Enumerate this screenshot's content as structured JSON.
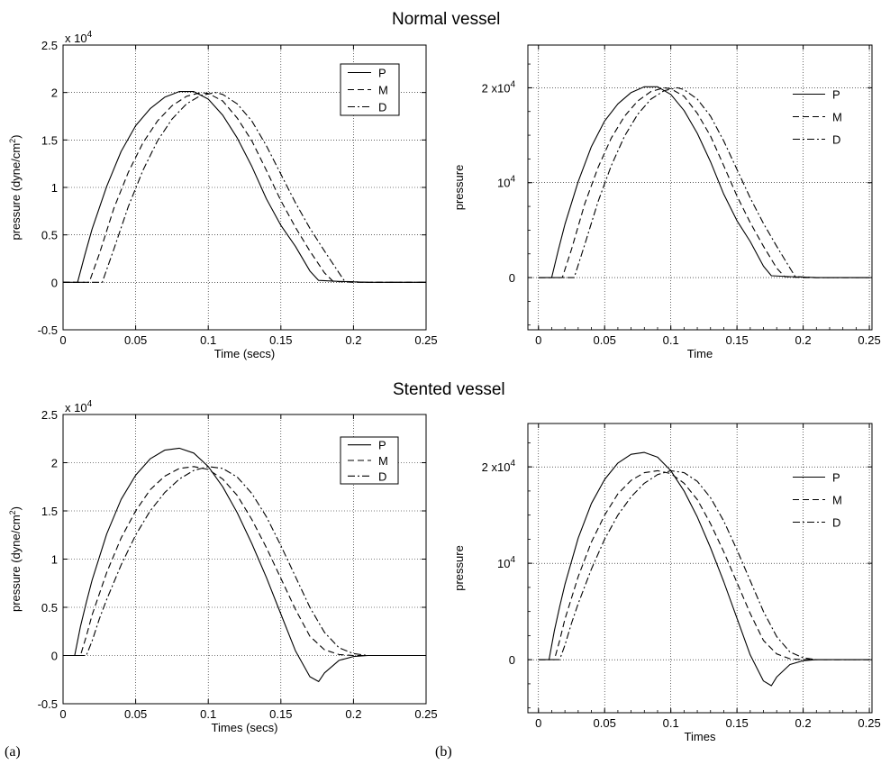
{
  "sections": {
    "top": "Normal vessel",
    "bottom": "Stented vessel"
  },
  "panel_tags": {
    "left": "(a)",
    "right": "(b)"
  },
  "chart_data": [
    {
      "id": "normal-a",
      "type": "line",
      "title": "",
      "xlabel": "Time  (secs)",
      "ylabel": "pressure  (dyne/cm",
      "ylabel_sup": "2",
      "ylabel_tail": ")",
      "exponent_label": "x 10",
      "exponent_sup": "4",
      "xlim": [
        0,
        0.25
      ],
      "ylim": [
        -0.5,
        2.5
      ],
      "grid": true,
      "legend": "top-right",
      "legend_boxed": true,
      "x_ticks": [
        0,
        0.05,
        0.1,
        0.15,
        0.2,
        0.25
      ],
      "x_tick_labels": [
        "0",
        "0.05",
        "0.1",
        "0.15",
        "0.2",
        "0.25"
      ],
      "y_ticks": [
        -0.5,
        0,
        0.5,
        1,
        1.5,
        2,
        2.5
      ],
      "y_tick_labels": [
        "-0.5",
        "0",
        "0.5",
        "1",
        "1.5",
        "2",
        "2.5"
      ],
      "series": [
        {
          "name": "P",
          "style": "solid",
          "x": [
            0,
            0.01,
            0.015,
            0.02,
            0.03,
            0.04,
            0.05,
            0.06,
            0.07,
            0.08,
            0.09,
            0.1,
            0.11,
            0.12,
            0.13,
            0.14,
            0.15,
            0.16,
            0.17,
            0.176,
            0.19,
            0.21,
            0.25
          ],
          "y": [
            0,
            0,
            0.29,
            0.56,
            1.01,
            1.38,
            1.65,
            1.83,
            1.95,
            2.01,
            2.01,
            1.93,
            1.76,
            1.52,
            1.22,
            0.88,
            0.6,
            0.38,
            0.12,
            0.02,
            0.01,
            0,
            0
          ]
        },
        {
          "name": "M",
          "style": "dashed",
          "x": [
            0,
            0.018,
            0.025,
            0.035,
            0.045,
            0.055,
            0.065,
            0.075,
            0.085,
            0.095,
            0.1,
            0.11,
            0.12,
            0.13,
            0.14,
            0.15,
            0.16,
            0.17,
            0.18,
            0.186,
            0.2,
            0.25
          ],
          "y": [
            0,
            0,
            0.3,
            0.78,
            1.16,
            1.47,
            1.7,
            1.86,
            1.96,
            2.0,
            1.99,
            1.91,
            1.73,
            1.49,
            1.18,
            0.86,
            0.58,
            0.33,
            0.1,
            0.01,
            0,
            0
          ]
        },
        {
          "name": "D",
          "style": "dashdot",
          "x": [
            0,
            0.027,
            0.035,
            0.045,
            0.055,
            0.065,
            0.075,
            0.085,
            0.095,
            0.105,
            0.11,
            0.12,
            0.13,
            0.14,
            0.15,
            0.16,
            0.17,
            0.18,
            0.19,
            0.194,
            0.21,
            0.25
          ],
          "y": [
            0,
            0,
            0.35,
            0.8,
            1.18,
            1.49,
            1.72,
            1.88,
            1.97,
            2.0,
            1.98,
            1.88,
            1.7,
            1.44,
            1.14,
            0.84,
            0.57,
            0.33,
            0.1,
            0.01,
            0,
            0
          ]
        }
      ]
    },
    {
      "id": "normal-b",
      "type": "line",
      "title": "",
      "xlabel": "Time",
      "ylabel": "pressure",
      "xlim": [
        -0.008,
        0.252
      ],
      "ylim": [
        -0.55,
        2.45
      ],
      "grid": true,
      "legend": "top-right",
      "legend_boxed": false,
      "x_ticks": [
        0,
        0.05,
        0.1,
        0.15,
        0.2,
        0.25
      ],
      "x_tick_labels": [
        "0",
        "0.05",
        "0.1",
        "0.15",
        "0.2",
        "0.25"
      ],
      "y_ticks": [
        0,
        1,
        2
      ],
      "y_tick_labels": [
        {
          "base": "0"
        },
        {
          "base": "10",
          "sup": "4"
        },
        {
          "base": "2 x10",
          "sup": "4"
        }
      ],
      "series": [
        {
          "name": "P",
          "style": "solid",
          "x": [
            0,
            0.01,
            0.015,
            0.02,
            0.03,
            0.04,
            0.05,
            0.06,
            0.07,
            0.08,
            0.09,
            0.1,
            0.11,
            0.12,
            0.13,
            0.14,
            0.15,
            0.16,
            0.17,
            0.176,
            0.19,
            0.21,
            0.25
          ],
          "y": [
            0,
            0,
            0.29,
            0.56,
            1.01,
            1.38,
            1.65,
            1.83,
            1.95,
            2.01,
            2.01,
            1.93,
            1.76,
            1.52,
            1.22,
            0.88,
            0.6,
            0.38,
            0.12,
            0.02,
            0.01,
            0,
            0
          ]
        },
        {
          "name": "M",
          "style": "dashed",
          "x": [
            0,
            0.018,
            0.025,
            0.035,
            0.045,
            0.055,
            0.065,
            0.075,
            0.085,
            0.095,
            0.1,
            0.11,
            0.12,
            0.13,
            0.14,
            0.15,
            0.16,
            0.17,
            0.18,
            0.186,
            0.2,
            0.25
          ],
          "y": [
            0,
            0,
            0.3,
            0.78,
            1.16,
            1.47,
            1.7,
            1.86,
            1.96,
            2.0,
            1.99,
            1.91,
            1.73,
            1.49,
            1.18,
            0.86,
            0.58,
            0.33,
            0.1,
            0.01,
            0,
            0
          ]
        },
        {
          "name": "D",
          "style": "dashdot",
          "x": [
            0,
            0.027,
            0.035,
            0.045,
            0.055,
            0.065,
            0.075,
            0.085,
            0.095,
            0.105,
            0.11,
            0.12,
            0.13,
            0.14,
            0.15,
            0.16,
            0.17,
            0.18,
            0.19,
            0.194,
            0.21,
            0.25
          ],
          "y": [
            0,
            0,
            0.35,
            0.8,
            1.18,
            1.49,
            1.72,
            1.88,
            1.97,
            2.0,
            1.98,
            1.88,
            1.7,
            1.44,
            1.14,
            0.84,
            0.57,
            0.33,
            0.1,
            0.01,
            0,
            0
          ]
        }
      ]
    },
    {
      "id": "stented-a",
      "type": "line",
      "title": "",
      "xlabel": "Times  (secs)",
      "ylabel": "pressure  (dyne/cm",
      "ylabel_sup": "2",
      "ylabel_tail": ")",
      "exponent_label": "x 10",
      "exponent_sup": "4",
      "xlim": [
        0,
        0.25
      ],
      "ylim": [
        -0.5,
        2.5
      ],
      "grid": true,
      "legend": "top-right",
      "legend_boxed": true,
      "x_ticks": [
        0,
        0.05,
        0.1,
        0.15,
        0.2,
        0.25
      ],
      "x_tick_labels": [
        "0",
        "0.05",
        "0.1",
        "0.15",
        "0.2",
        "0.25"
      ],
      "y_ticks": [
        -0.5,
        0,
        0.5,
        1,
        1.5,
        2,
        2.5
      ],
      "y_tick_labels": [
        "-0.5",
        "0",
        "0.5",
        "1",
        "1.5",
        "2",
        "2.5"
      ],
      "series": [
        {
          "name": "P",
          "style": "solid",
          "x": [
            0,
            0.008,
            0.012,
            0.016,
            0.02,
            0.03,
            0.04,
            0.05,
            0.06,
            0.07,
            0.08,
            0.09,
            0.1,
            0.11,
            0.12,
            0.13,
            0.14,
            0.15,
            0.16,
            0.17,
            0.176,
            0.18,
            0.19,
            0.2,
            0.21,
            0.25
          ],
          "y": [
            0,
            0,
            0.3,
            0.55,
            0.78,
            1.26,
            1.62,
            1.87,
            2.04,
            2.13,
            2.15,
            2.1,
            1.96,
            1.75,
            1.48,
            1.16,
            0.81,
            0.43,
            0.05,
            -0.22,
            -0.27,
            -0.18,
            -0.05,
            -0.01,
            0,
            0
          ]
        },
        {
          "name": "M",
          "style": "dashed",
          "x": [
            0,
            0.012,
            0.016,
            0.02,
            0.03,
            0.04,
            0.05,
            0.06,
            0.07,
            0.08,
            0.09,
            0.1,
            0.11,
            0.12,
            0.13,
            0.14,
            0.15,
            0.16,
            0.17,
            0.18,
            0.19,
            0.2,
            0.25
          ],
          "y": [
            0,
            0,
            0.2,
            0.42,
            0.86,
            1.22,
            1.5,
            1.72,
            1.86,
            1.94,
            1.96,
            1.93,
            1.83,
            1.66,
            1.41,
            1.12,
            0.8,
            0.48,
            0.2,
            0.06,
            0.01,
            0,
            0
          ]
        },
        {
          "name": "D",
          "style": "dashdot",
          "x": [
            0,
            0.016,
            0.02,
            0.025,
            0.03,
            0.04,
            0.05,
            0.06,
            0.07,
            0.08,
            0.09,
            0.1,
            0.11,
            0.12,
            0.13,
            0.14,
            0.15,
            0.16,
            0.17,
            0.18,
            0.19,
            0.2,
            0.21,
            0.25
          ],
          "y": [
            0,
            0,
            0.15,
            0.38,
            0.58,
            0.94,
            1.25,
            1.5,
            1.69,
            1.83,
            1.92,
            1.96,
            1.94,
            1.85,
            1.68,
            1.44,
            1.14,
            0.82,
            0.5,
            0.24,
            0.08,
            0.02,
            0,
            0
          ]
        }
      ]
    },
    {
      "id": "stented-b",
      "type": "line",
      "title": "",
      "xlabel": "Times",
      "ylabel": "pressure",
      "xlim": [
        -0.008,
        0.252
      ],
      "ylim": [
        -0.55,
        2.45
      ],
      "grid": true,
      "legend": "top-right",
      "legend_boxed": false,
      "x_ticks": [
        0,
        0.05,
        0.1,
        0.15,
        0.2,
        0.25
      ],
      "x_tick_labels": [
        "0",
        "0.05",
        "0.1",
        "0.15",
        "0.2",
        "0.25"
      ],
      "y_ticks": [
        0,
        1,
        2
      ],
      "y_tick_labels": [
        {
          "base": "0"
        },
        {
          "base": "10",
          "sup": "4"
        },
        {
          "base": "2 x10",
          "sup": "4"
        }
      ],
      "series": [
        {
          "name": "P",
          "style": "solid",
          "x": [
            0,
            0.008,
            0.012,
            0.016,
            0.02,
            0.03,
            0.04,
            0.05,
            0.06,
            0.07,
            0.08,
            0.09,
            0.1,
            0.11,
            0.12,
            0.13,
            0.14,
            0.15,
            0.16,
            0.17,
            0.176,
            0.18,
            0.19,
            0.2,
            0.21,
            0.25
          ],
          "y": [
            0,
            0,
            0.3,
            0.55,
            0.78,
            1.26,
            1.62,
            1.87,
            2.04,
            2.13,
            2.15,
            2.1,
            1.96,
            1.75,
            1.48,
            1.16,
            0.81,
            0.43,
            0.05,
            -0.22,
            -0.27,
            -0.18,
            -0.05,
            -0.01,
            0,
            0
          ]
        },
        {
          "name": "M",
          "style": "dashed",
          "x": [
            0,
            0.012,
            0.016,
            0.02,
            0.03,
            0.04,
            0.05,
            0.06,
            0.07,
            0.08,
            0.09,
            0.1,
            0.11,
            0.12,
            0.13,
            0.14,
            0.15,
            0.16,
            0.17,
            0.18,
            0.19,
            0.2,
            0.25
          ],
          "y": [
            0,
            0,
            0.2,
            0.42,
            0.86,
            1.22,
            1.5,
            1.72,
            1.86,
            1.94,
            1.96,
            1.93,
            1.83,
            1.66,
            1.41,
            1.12,
            0.8,
            0.48,
            0.2,
            0.06,
            0.01,
            0,
            0
          ]
        },
        {
          "name": "D",
          "style": "dashdot",
          "x": [
            0,
            0.016,
            0.02,
            0.025,
            0.03,
            0.04,
            0.05,
            0.06,
            0.07,
            0.08,
            0.09,
            0.1,
            0.11,
            0.12,
            0.13,
            0.14,
            0.15,
            0.16,
            0.17,
            0.18,
            0.19,
            0.2,
            0.21,
            0.25
          ],
          "y": [
            0,
            0,
            0.15,
            0.38,
            0.58,
            0.94,
            1.25,
            1.5,
            1.69,
            1.83,
            1.92,
            1.96,
            1.94,
            1.85,
            1.68,
            1.44,
            1.14,
            0.82,
            0.5,
            0.24,
            0.08,
            0.02,
            0,
            0
          ]
        }
      ]
    }
  ]
}
